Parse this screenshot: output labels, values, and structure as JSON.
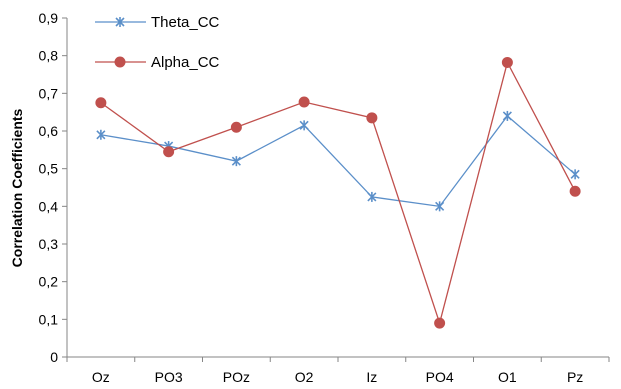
{
  "chart_data": {
    "type": "line",
    "categories": [
      "Oz",
      "PO3",
      "POz",
      "O2",
      "Iz",
      "PO4",
      "O1",
      "Pz"
    ],
    "series": [
      {
        "name": "Theta_CC",
        "values": [
          0.59,
          0.56,
          0.52,
          0.615,
          0.425,
          0.4,
          0.64,
          0.485
        ],
        "color": "#5B8FC9",
        "marker": "star"
      },
      {
        "name": "Alpha_CC",
        "values": [
          0.675,
          0.545,
          0.61,
          0.677,
          0.635,
          0.09,
          0.782,
          0.44
        ],
        "color": "#C0504D",
        "marker": "circle"
      }
    ],
    "ylabel": "Correlation Coefficients",
    "xlabel": "",
    "ylim": [
      0,
      0.9
    ],
    "yticks": [
      "0",
      "0,1",
      "0,2",
      "0,3",
      "0,4",
      "0,5",
      "0,6",
      "0,7",
      "0,8",
      "0,9"
    ],
    "grid": false,
    "legend_position": "top-left"
  }
}
